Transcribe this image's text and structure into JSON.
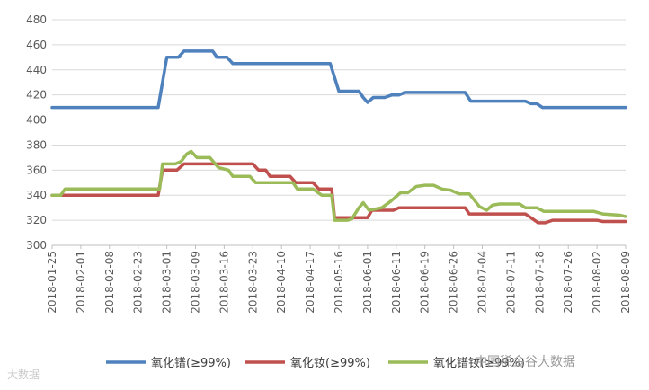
{
  "chart_data": {
    "type": "line",
    "title": "",
    "xlabel": "",
    "ylabel": "",
    "ylim": [
      300,
      480
    ],
    "yticks": [
      300,
      320,
      340,
      360,
      380,
      400,
      420,
      440,
      460,
      480
    ],
    "grid": "horizontal",
    "legend_position": "bottom",
    "x_tick_labels": [
      "2018-01-25",
      "2018-02-01",
      "2018-02-08",
      "2018-02-23",
      "2018-03-01",
      "2018-03-09",
      "2018-03-16",
      "2018-03-23",
      "2018-04-10",
      "2018-04-17",
      "2018-05-16",
      "2018-06-01",
      "2018-06-11",
      "2018-06-19",
      "2018-06-26",
      "2018-07-04",
      "2018-07-11",
      "2018-07-18",
      "2018-07-26",
      "2018-08-02",
      "2018-08-09"
    ],
    "series": [
      {
        "name": "氧化镨(≥99%)",
        "color": "#4f81bd",
        "points": [
          [
            0,
            410
          ],
          [
            1,
            410
          ],
          [
            2,
            410
          ],
          [
            3,
            410
          ],
          [
            3.7,
            410
          ],
          [
            4,
            450
          ],
          [
            4.4,
            450
          ],
          [
            4.6,
            455
          ],
          [
            5.3,
            455
          ],
          [
            5.6,
            455
          ],
          [
            5.75,
            450
          ],
          [
            6.1,
            450
          ],
          [
            6.3,
            445
          ],
          [
            7,
            445
          ],
          [
            8,
            445
          ],
          [
            9,
            445
          ],
          [
            9.7,
            445
          ],
          [
            10,
            423
          ],
          [
            10.7,
            423
          ],
          [
            10.85,
            418
          ],
          [
            11,
            414
          ],
          [
            11.2,
            418
          ],
          [
            11.6,
            418
          ],
          [
            11.85,
            420
          ],
          [
            12.1,
            420
          ],
          [
            12.3,
            422
          ],
          [
            13,
            422
          ],
          [
            14,
            422
          ],
          [
            14.4,
            422
          ],
          [
            14.6,
            415
          ],
          [
            15,
            415
          ],
          [
            16,
            415
          ],
          [
            16.5,
            415
          ],
          [
            16.7,
            413
          ],
          [
            16.9,
            413
          ],
          [
            17.1,
            410
          ],
          [
            18,
            410
          ],
          [
            19,
            410
          ],
          [
            20,
            410
          ]
        ]
      },
      {
        "name": "氧化钕(≥99%)",
        "color": "#c0504d",
        "points": [
          [
            0,
            340
          ],
          [
            1,
            340
          ],
          [
            2,
            340
          ],
          [
            3,
            340
          ],
          [
            3.7,
            340
          ],
          [
            3.85,
            360
          ],
          [
            4.35,
            360
          ],
          [
            4.6,
            365
          ],
          [
            5,
            365
          ],
          [
            6,
            365
          ],
          [
            7,
            365
          ],
          [
            7.2,
            360
          ],
          [
            7.45,
            360
          ],
          [
            7.6,
            355
          ],
          [
            8.3,
            355
          ],
          [
            8.5,
            350
          ],
          [
            9.1,
            350
          ],
          [
            9.3,
            345
          ],
          [
            9.75,
            345
          ],
          [
            9.85,
            322
          ],
          [
            10.7,
            322
          ],
          [
            11,
            322
          ],
          [
            11.15,
            328
          ],
          [
            11.9,
            328
          ],
          [
            12.1,
            330
          ],
          [
            13,
            330
          ],
          [
            14,
            330
          ],
          [
            14.4,
            330
          ],
          [
            14.55,
            325
          ],
          [
            15,
            325
          ],
          [
            16,
            325
          ],
          [
            16.5,
            325
          ],
          [
            16.7,
            322
          ],
          [
            16.95,
            318
          ],
          [
            17.2,
            318
          ],
          [
            17.45,
            320
          ],
          [
            18,
            320
          ],
          [
            19,
            320
          ],
          [
            19.2,
            319
          ],
          [
            20,
            319
          ]
        ]
      },
      {
        "name": "氧化镨钕(≥99%)",
        "color": "#9bbb59",
        "points": [
          [
            0,
            340
          ],
          [
            0.3,
            340
          ],
          [
            0.45,
            345
          ],
          [
            1,
            345
          ],
          [
            2,
            345
          ],
          [
            3,
            345
          ],
          [
            3.75,
            345
          ],
          [
            3.85,
            365
          ],
          [
            4.3,
            365
          ],
          [
            4.5,
            367
          ],
          [
            4.7,
            373
          ],
          [
            4.85,
            375
          ],
          [
            5.05,
            370
          ],
          [
            5.5,
            370
          ],
          [
            5.8,
            362
          ],
          [
            6.15,
            360
          ],
          [
            6.3,
            355
          ],
          [
            6.9,
            355
          ],
          [
            7.1,
            350
          ],
          [
            8,
            350
          ],
          [
            8.4,
            350
          ],
          [
            8.55,
            345
          ],
          [
            9.1,
            345
          ],
          [
            9.4,
            340
          ],
          [
            9.75,
            340
          ],
          [
            9.85,
            320
          ],
          [
            10.3,
            320
          ],
          [
            10.45,
            321
          ],
          [
            10.7,
            330
          ],
          [
            10.85,
            334
          ],
          [
            11.05,
            328
          ],
          [
            11.5,
            330
          ],
          [
            11.8,
            335
          ],
          [
            12.15,
            342
          ],
          [
            12.4,
            342
          ],
          [
            12.7,
            347
          ],
          [
            13,
            348
          ],
          [
            13.3,
            348
          ],
          [
            13.6,
            345
          ],
          [
            13.9,
            344
          ],
          [
            14.2,
            341
          ],
          [
            14.55,
            341
          ],
          [
            14.9,
            331
          ],
          [
            15.15,
            328
          ],
          [
            15.35,
            332
          ],
          [
            15.6,
            333
          ],
          [
            16.3,
            333
          ],
          [
            16.5,
            330
          ],
          [
            16.9,
            330
          ],
          [
            17.15,
            327
          ],
          [
            18,
            327
          ],
          [
            18.9,
            327
          ],
          [
            19.2,
            325
          ],
          [
            19.8,
            324
          ],
          [
            20,
            323
          ]
        ]
      }
    ]
  },
  "legend": {
    "items": [
      {
        "label": "氧化镨(≥99%)",
        "color": "#4f81bd"
      },
      {
        "label": "氧化钕(≥99%)",
        "color": "#c0504d"
      },
      {
        "label": "氧化镨钕(≥99%)",
        "color": "#9bbb59"
      }
    ]
  },
  "watermarks": {
    "left": "大数据",
    "right": "中国稀金谷大数据"
  }
}
